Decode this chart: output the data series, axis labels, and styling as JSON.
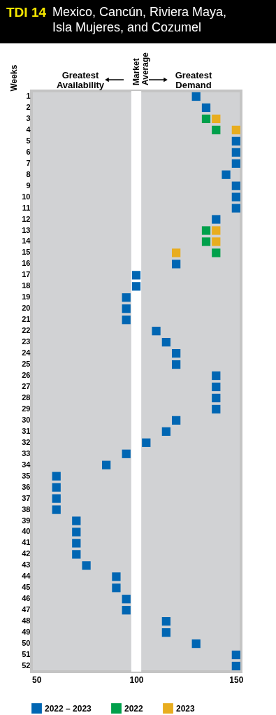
{
  "chart_data": {
    "type": "scatter",
    "orientation": "horizontal",
    "title": "TDI 14",
    "subtitle": "Mexico, Cancún, Riviera Maya, Isla Mujeres, and Cozumel",
    "ylabel": "Weeks",
    "annotations": [
      "Greatest Availability",
      "Greatest Demand"
    ],
    "categories": [
      "1",
      "2",
      "3",
      "4",
      "5",
      "6",
      "7",
      "8",
      "9",
      "10",
      "11",
      "12",
      "13",
      "14",
      "15",
      "16",
      "17",
      "18",
      "19",
      "20",
      "21",
      "22",
      "23",
      "24",
      "25",
      "26",
      "27",
      "28",
      "29",
      "30",
      "31",
      "32",
      "33",
      "34",
      "35",
      "36",
      "37",
      "38",
      "39",
      "40",
      "41",
      "42",
      "43",
      "44",
      "45",
      "46",
      "47",
      "48",
      "49",
      "50",
      "51",
      "52"
    ],
    "series": [
      {
        "name": "2022 – 2023",
        "color": "#0066b3",
        "values": [
          130,
          135,
          null,
          null,
          150,
          150,
          150,
          145,
          150,
          150,
          150,
          140,
          null,
          null,
          null,
          120,
          100,
          100,
          95,
          95,
          95,
          110,
          115,
          120,
          120,
          140,
          140,
          140,
          140,
          120,
          115,
          105,
          95,
          85,
          60,
          60,
          60,
          60,
          70,
          70,
          70,
          70,
          75,
          90,
          90,
          95,
          95,
          115,
          115,
          130,
          150,
          150
        ]
      },
      {
        "name": "2022",
        "color": "#00a04b",
        "values": [
          null,
          null,
          135,
          140,
          null,
          null,
          null,
          null,
          null,
          null,
          null,
          null,
          135,
          135,
          140,
          null,
          null,
          null,
          null,
          null,
          null,
          null,
          null,
          null,
          null,
          null,
          null,
          null,
          null,
          null,
          null,
          null,
          null,
          null,
          null,
          null,
          null,
          null,
          null,
          null,
          null,
          null,
          null,
          null,
          null,
          null,
          null,
          null,
          null,
          null,
          null,
          null
        ]
      },
      {
        "name": "2023",
        "color": "#e8ad1f",
        "values": [
          null,
          null,
          140,
          150,
          null,
          null,
          null,
          null,
          null,
          null,
          null,
          null,
          140,
          140,
          120,
          null,
          null,
          null,
          null,
          null,
          null,
          null,
          null,
          null,
          null,
          null,
          null,
          null,
          null,
          null,
          null,
          null,
          null,
          null,
          null,
          null,
          null,
          null,
          null,
          null,
          null,
          null,
          null,
          null,
          null,
          null,
          null,
          null,
          null,
          null,
          null,
          null
        ]
      }
    ],
    "xlim": [
      47.5,
      152.5
    ],
    "xticks": [
      50,
      100,
      150
    ],
    "bands": [
      {
        "axis": "x",
        "from": 97.5,
        "to": 102.5,
        "label": "Market Average",
        "color": "#ffffff"
      }
    ],
    "marker": "square",
    "legend": "bottom",
    "grid": false
  }
}
